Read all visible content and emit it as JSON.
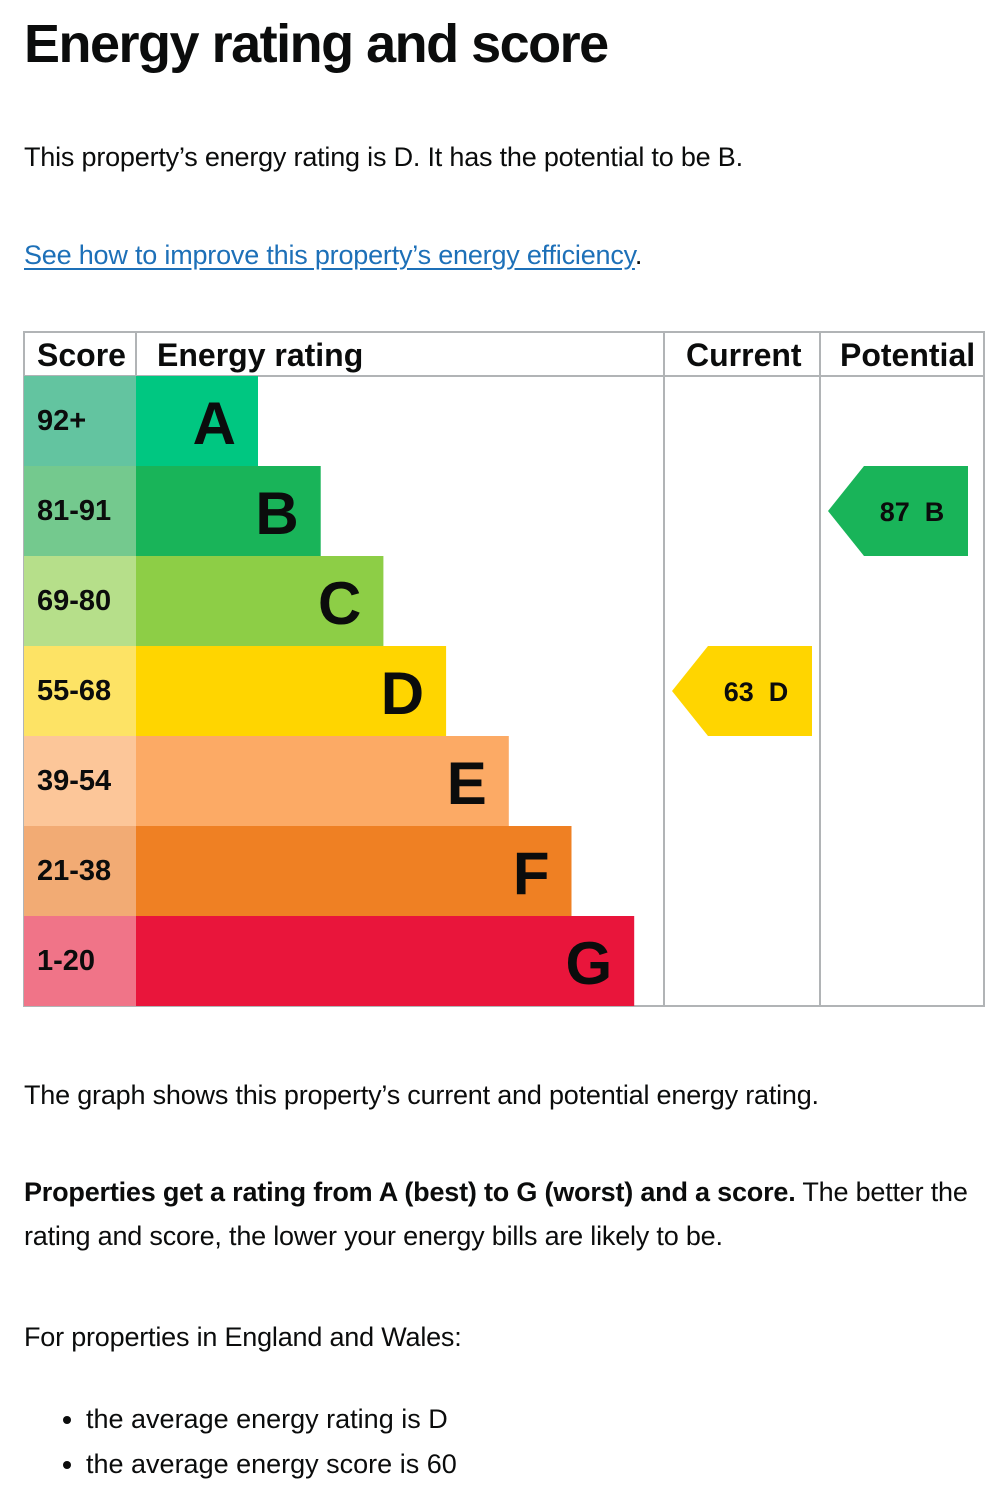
{
  "page": {
    "title": "Energy rating and score",
    "intro": "This property’s energy rating is D. It has the potential to be B.",
    "link_text": "See how to improve this property’s energy efficiency",
    "link_suffix": ".",
    "graph_caption": "The graph shows this property’s current and potential energy rating.",
    "rating_bold": "Properties get a rating from A (best) to G (worst) and a score.",
    "rating_rest": " The better the rating and score, the lower your energy bills are likely to be.",
    "region_intro": "For properties in England and Wales:",
    "averages": [
      "the average energy rating is D",
      "the average energy score is 60"
    ]
  },
  "chart_data": {
    "type": "table",
    "headers": {
      "score": "Score",
      "rating": "Energy rating",
      "current": "Current",
      "potential": "Potential"
    },
    "bands": [
      {
        "letter": "A",
        "score_range": "92+",
        "color": "#00c781",
        "score_color": "#63c4a0"
      },
      {
        "letter": "B",
        "score_range": "81-91",
        "color": "#19b459",
        "score_color": "#74c98e"
      },
      {
        "letter": "C",
        "score_range": "69-80",
        "color": "#8dce46",
        "score_color": "#b6df8a"
      },
      {
        "letter": "D",
        "score_range": "55-68",
        "color": "#ffd500",
        "score_color": "#fde365"
      },
      {
        "letter": "E",
        "score_range": "39-54",
        "color": "#fcaa65",
        "score_color": "#fcc699"
      },
      {
        "letter": "F",
        "score_range": "21-38",
        "color": "#ef8023",
        "score_color": "#f2ab74"
      },
      {
        "letter": "G",
        "score_range": "1-20",
        "color": "#e9153b",
        "score_color": "#f07488"
      }
    ],
    "current": {
      "score": 63,
      "rating": "D",
      "label": "63  D",
      "color": "#ffd500"
    },
    "potential": {
      "score": 87,
      "rating": "B",
      "label": "87  B",
      "color": "#19b459"
    }
  }
}
